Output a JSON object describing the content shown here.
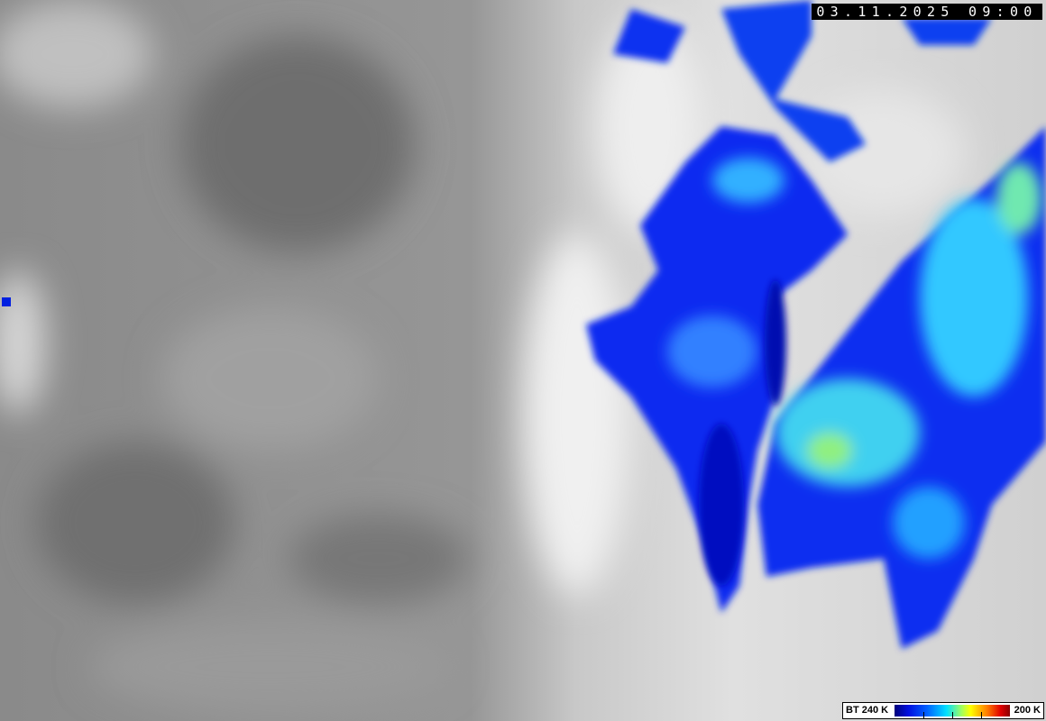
{
  "image": {
    "type": "satellite infrared brightness temperature",
    "colors": {
      "cold_cloud_low": "#0010e0",
      "mid": "#00e0ff",
      "warm_high": "#e00000",
      "background_grey": "#8e8e8e"
    }
  },
  "timestamp": "03.11.2025 09:00",
  "legend": {
    "low_label": "BT 240 K",
    "high_label": "200 K",
    "gradient": [
      "#00007a",
      "#0010e0",
      "#0060ff",
      "#00e0ff",
      "#a0ff60",
      "#ffff00",
      "#ff8000",
      "#e00000",
      "#8a0000"
    ]
  }
}
